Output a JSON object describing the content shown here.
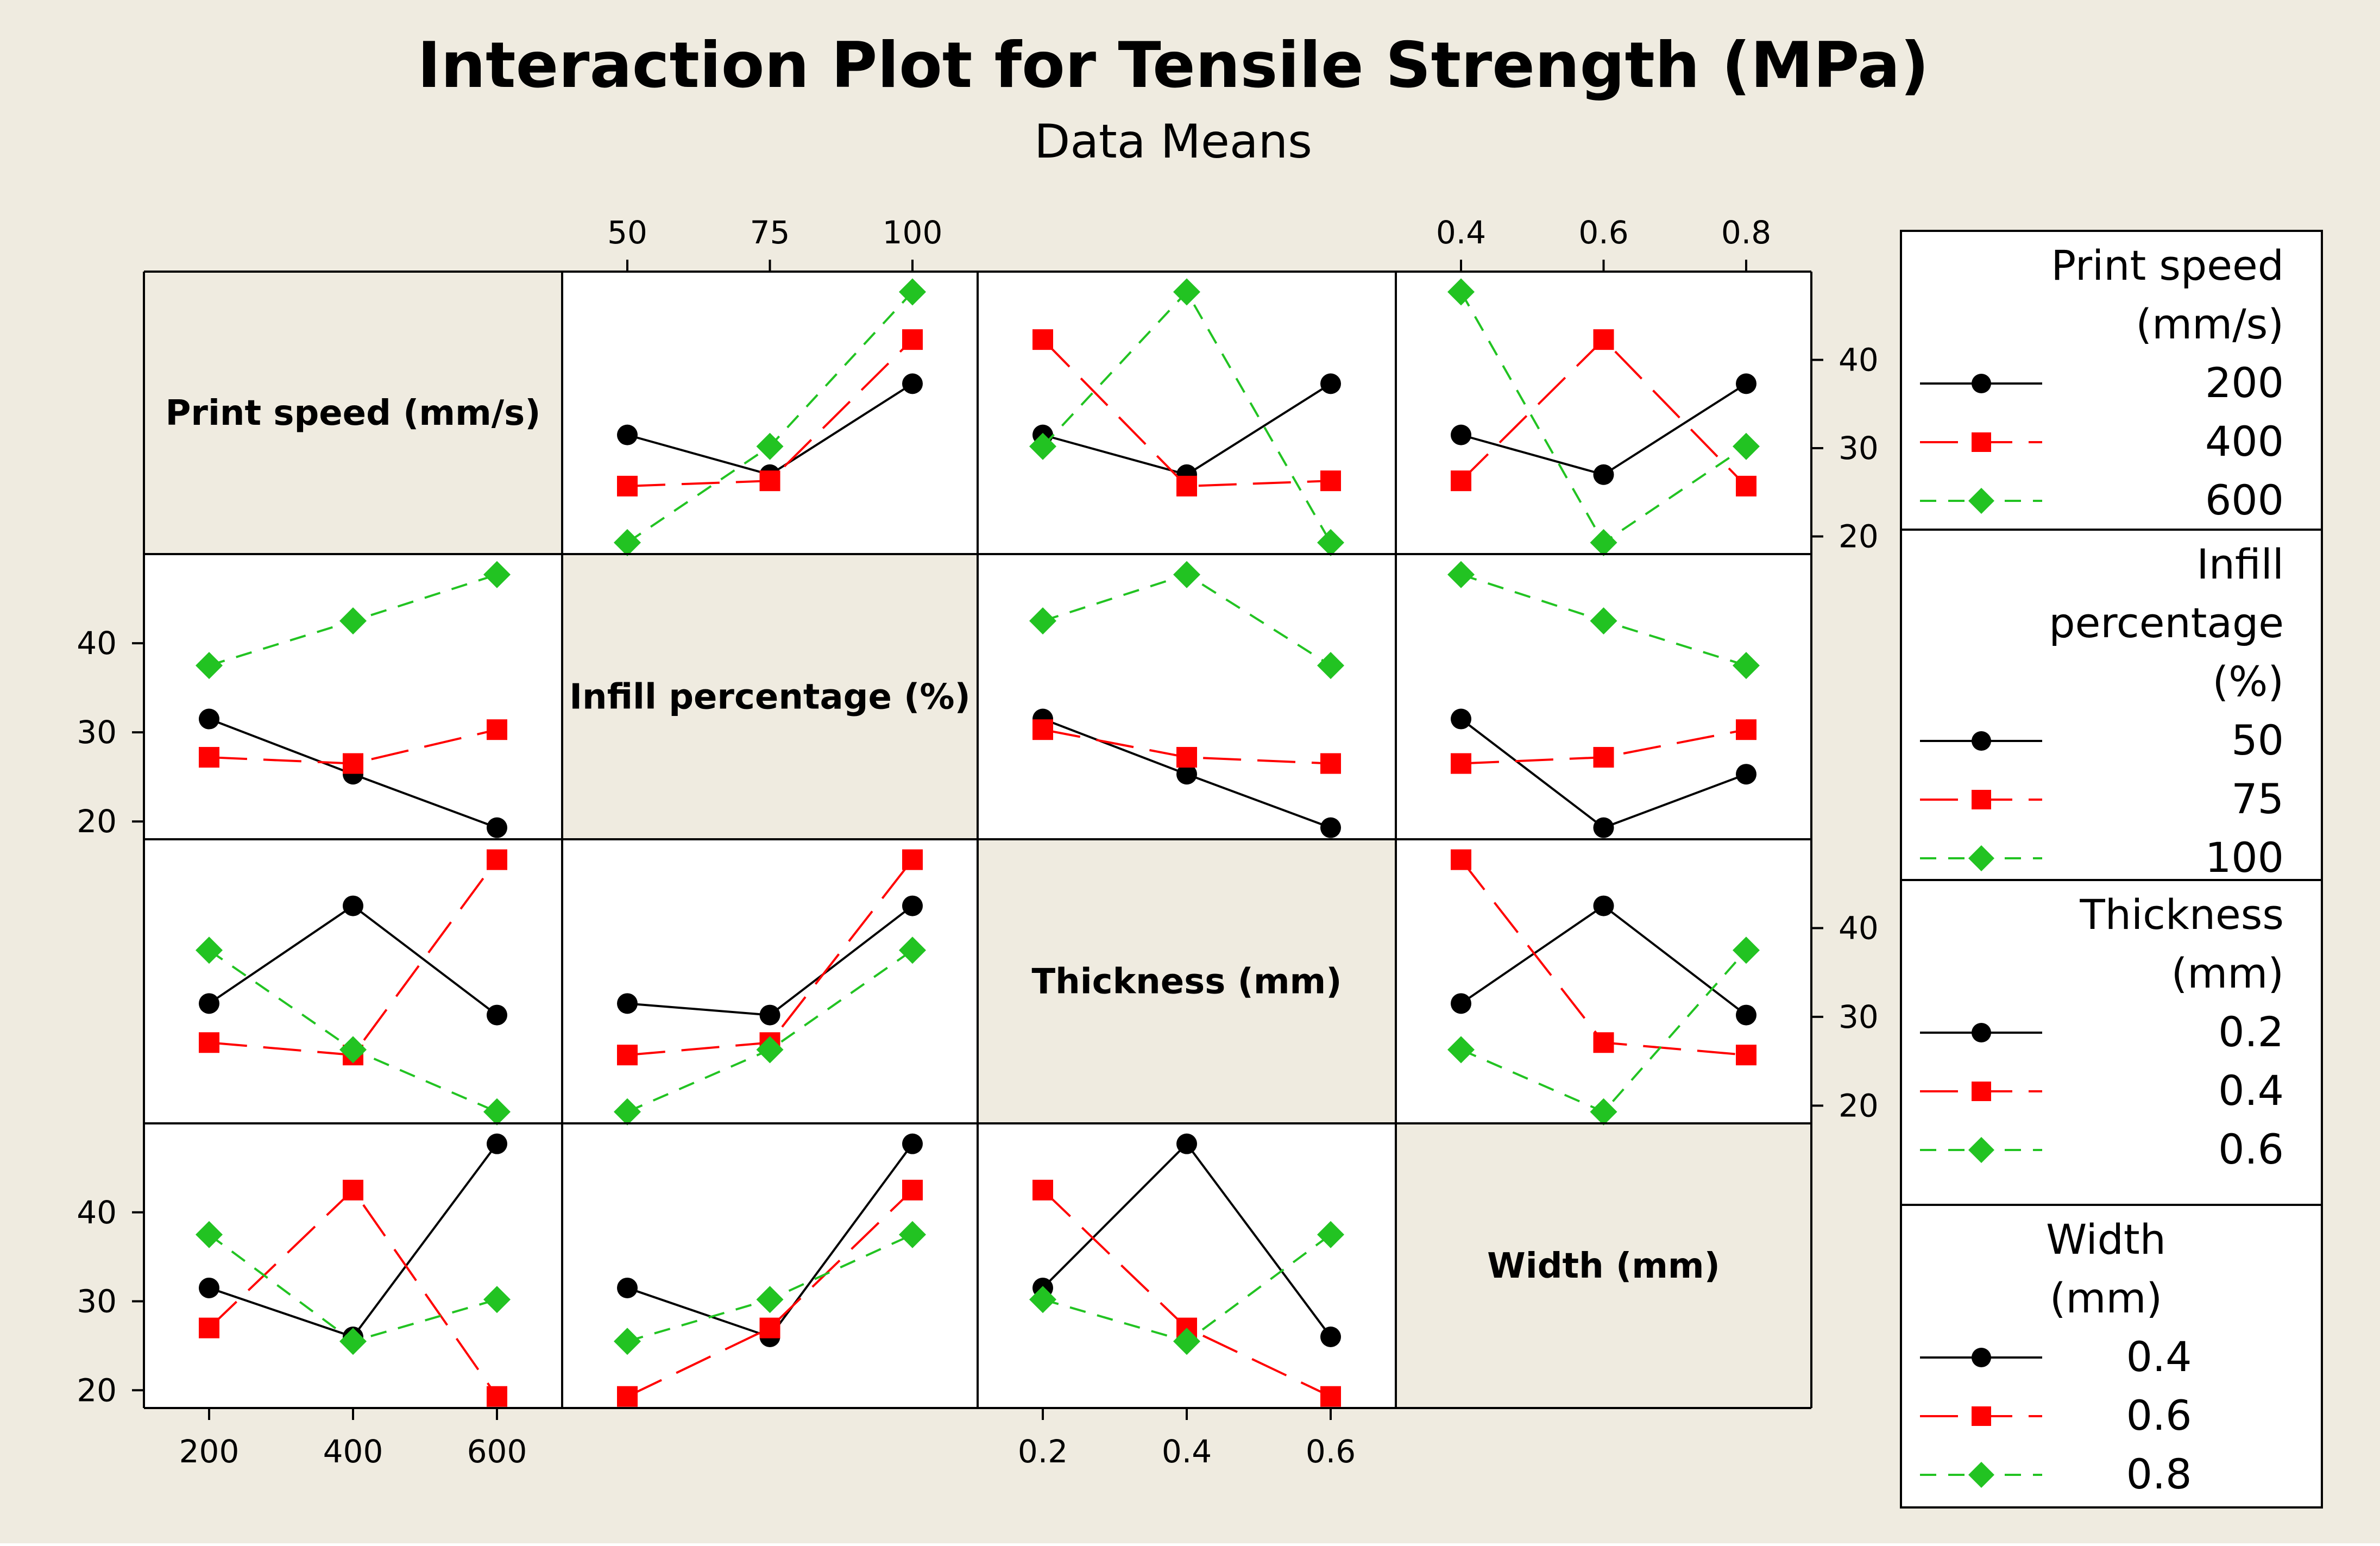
{
  "title": "Interaction Plot for Tensile Strength (MPa)",
  "subtitle": "Data Means",
  "colors": {
    "background": "#efebe0",
    "plot_background": "#ffffff",
    "diag_background": "#efebe0",
    "frame": "#000000",
    "series": [
      "#000000",
      "#ff0000",
      "#22c322"
    ]
  },
  "chart_data": {
    "type": "line",
    "title": "Interaction Plot for Tensile Strength (MPa)",
    "subtitle": "Data Means",
    "ylim": [
      18,
      50
    ],
    "yticks": [
      20,
      30,
      40
    ],
    "factors": [
      {
        "name": "Print speed (mm/s)",
        "legend_lines": [
          "Print speed",
          "(mm/s)"
        ],
        "levels": [
          "200",
          "400",
          "600"
        ]
      },
      {
        "name": "Infill percentage (%)",
        "legend_lines": [
          "Infill",
          "percentage",
          "(%)"
        ],
        "levels": [
          "50",
          "75",
          "100"
        ]
      },
      {
        "name": "Thickness (mm)",
        "legend_lines": [
          "Thickness",
          "(mm)"
        ],
        "levels": [
          "0.2",
          "0.4",
          "0.6"
        ]
      },
      {
        "name": "Width (mm)",
        "legend_lines": [
          "Width",
          "(mm)"
        ],
        "levels": [
          "0.4",
          "0.6",
          "0.8"
        ]
      }
    ],
    "series_styles": [
      {
        "color": "#000000",
        "marker": "circle",
        "dash": "solid"
      },
      {
        "color": "#ff0000",
        "marker": "square",
        "dash": "long-dash"
      },
      {
        "color": "#22c322",
        "marker": "diamond",
        "dash": "short-dash"
      }
    ],
    "panels": [
      {
        "row": 0,
        "col": 1,
        "series": [
          [
            31.5,
            27,
            37.3
          ],
          [
            25.7,
            26.3,
            42.3
          ],
          [
            19.3,
            30.2,
            47.7
          ]
        ]
      },
      {
        "row": 0,
        "col": 2,
        "series": [
          [
            31.5,
            27,
            37.3
          ],
          [
            42.3,
            25.7,
            26.3
          ],
          [
            30.2,
            47.7,
            19.3
          ]
        ]
      },
      {
        "row": 0,
        "col": 3,
        "series": [
          [
            31.5,
            27,
            37.3
          ],
          [
            26.3,
            42.3,
            25.7
          ],
          [
            47.7,
            19.3,
            30.2
          ]
        ]
      },
      {
        "row": 1,
        "col": 0,
        "series": [
          [
            31.5,
            25.3,
            19.3
          ],
          [
            27.2,
            26.5,
            30.3
          ],
          [
            37.5,
            42.5,
            47.7
          ]
        ]
      },
      {
        "row": 1,
        "col": 2,
        "series": [
          [
            31.5,
            25.3,
            19.3
          ],
          [
            30.3,
            27.2,
            26.5
          ],
          [
            42.5,
            47.7,
            37.5
          ]
        ]
      },
      {
        "row": 1,
        "col": 3,
        "series": [
          [
            31.5,
            19.3,
            25.3
          ],
          [
            26.5,
            27.2,
            30.3
          ],
          [
            47.7,
            42.5,
            37.5
          ]
        ]
      },
      {
        "row": 2,
        "col": 0,
        "series": [
          [
            31.5,
            42.5,
            30.2
          ],
          [
            27.1,
            25.7,
            47.7
          ],
          [
            37.5,
            26.3,
            19.3
          ]
        ]
      },
      {
        "row": 2,
        "col": 1,
        "series": [
          [
            31.5,
            30.2,
            42.5
          ],
          [
            25.7,
            27.1,
            47.7
          ],
          [
            19.3,
            26.3,
            37.5
          ]
        ]
      },
      {
        "row": 2,
        "col": 3,
        "series": [
          [
            31.5,
            42.5,
            30.2
          ],
          [
            47.7,
            27.1,
            25.7
          ],
          [
            26.3,
            19.3,
            37.5
          ]
        ]
      },
      {
        "row": 3,
        "col": 0,
        "series": [
          [
            31.5,
            26.0,
            47.7
          ],
          [
            27.0,
            42.5,
            19.3
          ],
          [
            37.5,
            25.5,
            30.2
          ]
        ]
      },
      {
        "row": 3,
        "col": 1,
        "series": [
          [
            31.5,
            26.0,
            47.7
          ],
          [
            19.3,
            27.0,
            42.5
          ],
          [
            25.5,
            30.2,
            37.5
          ]
        ]
      },
      {
        "row": 3,
        "col": 2,
        "series": [
          [
            31.5,
            47.7,
            26.0
          ],
          [
            42.5,
            27.0,
            19.3
          ],
          [
            30.2,
            25.5,
            37.5
          ]
        ]
      }
    ]
  }
}
